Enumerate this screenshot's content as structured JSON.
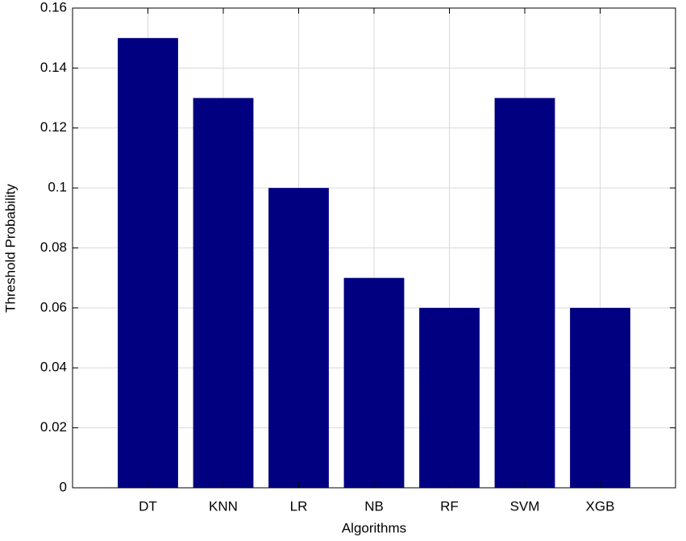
{
  "chart_data": {
    "type": "bar",
    "x_label": "Algorithms",
    "y_label": "Threshold Probability",
    "categories": [
      "DT",
      "KNN",
      "LR",
      "NB",
      "RF",
      "SVM",
      "XGB"
    ],
    "values": [
      0.15,
      0.13,
      0.1,
      0.07,
      0.06,
      0.13,
      0.06
    ],
    "color": "#000080",
    "ylim": [
      0,
      0.16
    ],
    "yticks": [
      0,
      0.02,
      0.04,
      0.06,
      0.08,
      0.1,
      0.12,
      0.14,
      0.16
    ],
    "grid": true
  }
}
